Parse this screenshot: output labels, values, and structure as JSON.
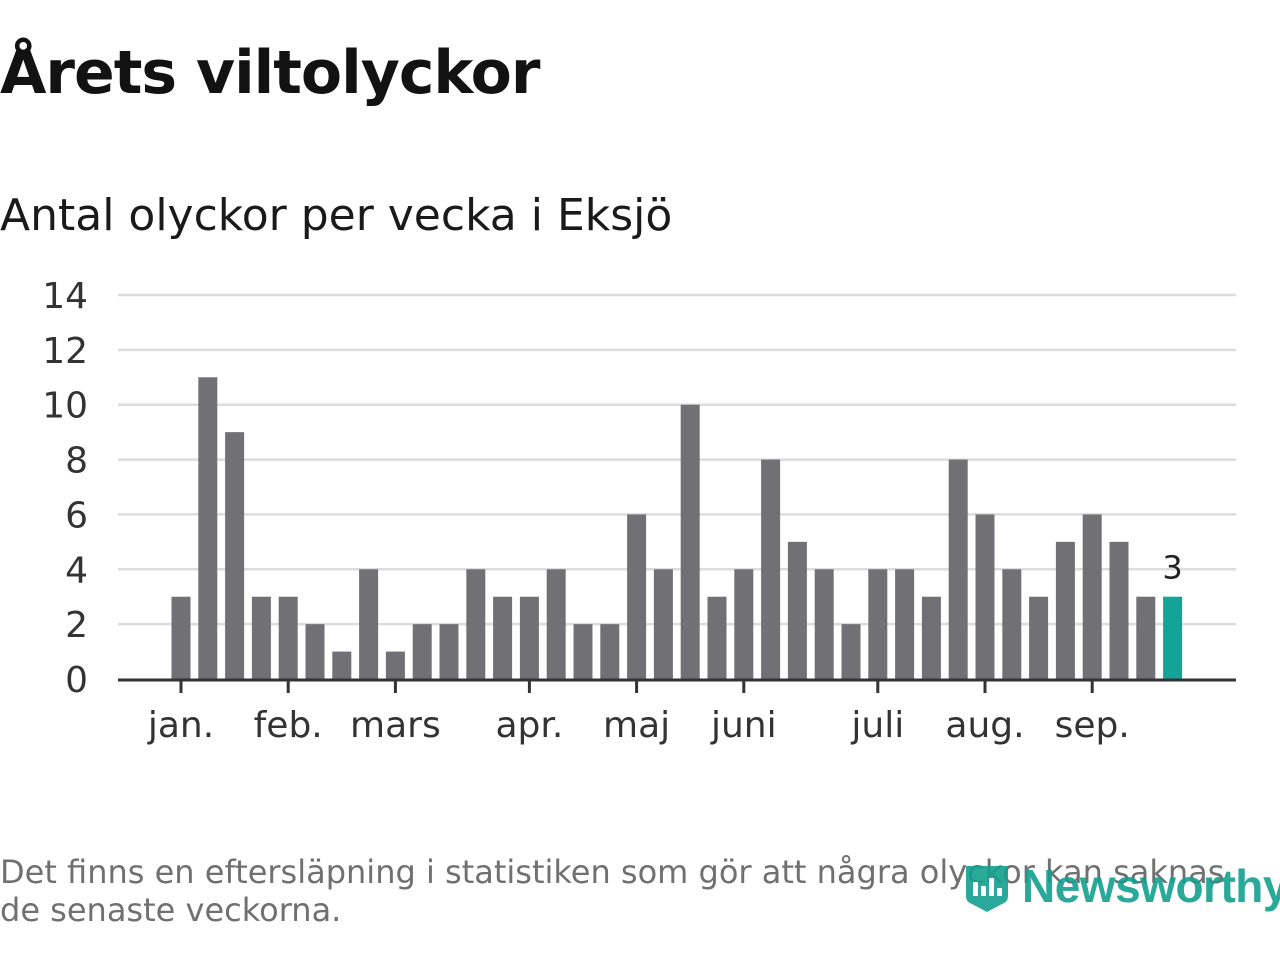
{
  "title": "Årets viltolyckor",
  "subtitle": "Antal olyckor per vecka i Eksjö",
  "footnote": "Det finns en eftersläpning i statistiken som gör att några olyckor kan saknas de senaste veckorna.",
  "logo": {
    "text": "Newsworthy",
    "icon": "newsworthy-logo-icon"
  },
  "colors": {
    "bar": "#717075",
    "highlight": "#13a497",
    "grid": "#dcdcdc",
    "axis": "#333333",
    "text": "#333333"
  },
  "chart_data": {
    "type": "bar",
    "title": "Antal olyckor per vecka i Eksjö",
    "xlabel": "",
    "ylabel": "",
    "ylim": [
      0,
      14
    ],
    "yticks": [
      0,
      2,
      4,
      6,
      8,
      10,
      12,
      14
    ],
    "grid": true,
    "values": [
      3,
      11,
      9,
      3,
      3,
      2,
      1,
      4,
      1,
      2,
      2,
      4,
      3,
      3,
      4,
      2,
      2,
      6,
      4,
      10,
      3,
      4,
      8,
      5,
      4,
      2,
      4,
      4,
      3,
      8,
      6,
      4,
      3,
      5,
      6,
      5,
      3,
      3
    ],
    "highlight_last": true,
    "last_value_label": "3",
    "month_ticks": [
      {
        "label": "jan.",
        "week_index": 0.3
      },
      {
        "label": "feb.",
        "week_index": 4.3
      },
      {
        "label": "mars",
        "week_index": 8.3
      },
      {
        "label": "apr.",
        "week_index": 13.3
      },
      {
        "label": "maj",
        "week_index": 17.3
      },
      {
        "label": "juni",
        "week_index": 21.3
      },
      {
        "label": "juli",
        "week_index": 26.3
      },
      {
        "label": "aug.",
        "week_index": 30.3
      },
      {
        "label": "sep.",
        "week_index": 34.3
      }
    ]
  }
}
